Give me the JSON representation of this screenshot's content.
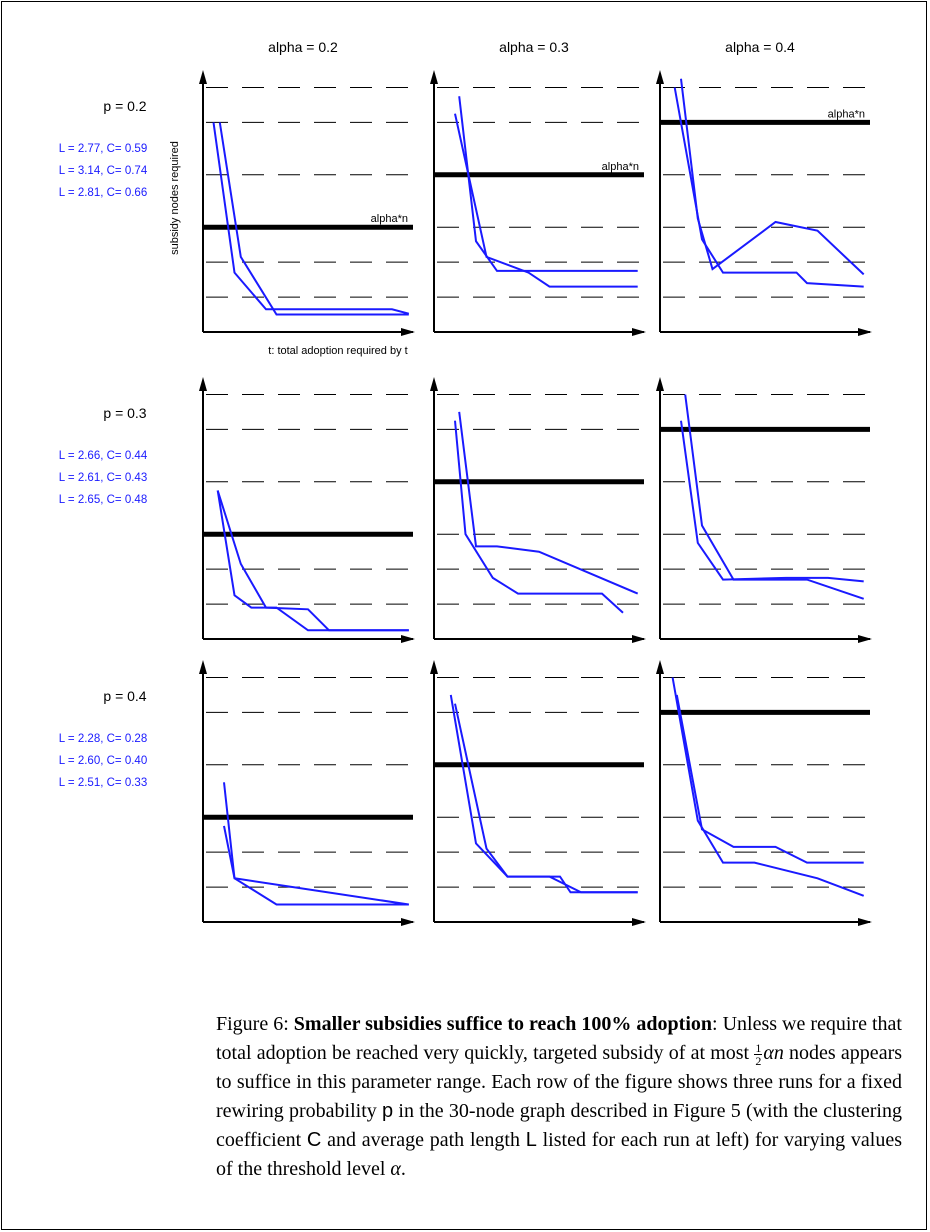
{
  "chart_data": {
    "type": "line",
    "layout": "3x3 small multiples",
    "column_titles": [
      "alpha = 0.2",
      "alpha = 0.3",
      "alpha = 0.4"
    ],
    "row_titles": [
      "p = 0.2",
      "p = 0.3",
      "p = 0.4"
    ],
    "ylabel": "subsidy nodes required",
    "xlabel": "t: total adoption required by t",
    "threshold_label": "alpha*n",
    "run_stats": [
      [
        "L = 2.77, C= 0.59",
        "L = 3.14, C= 0.74",
        "L = 2.81, C= 0.66"
      ],
      [
        "L = 2.66, C= 0.44",
        "L = 2.61, C= 0.43",
        "L = 2.65, C= 0.48"
      ],
      [
        "L = 2.28, C= 0.28",
        "L = 2.60, C= 0.40",
        "L = 2.51, C= 0.33"
      ]
    ],
    "grid": "dashed horizontal",
    "panels": [
      {
        "row": 0,
        "col": 0,
        "threshold": 6,
        "series": [
          {
            "values": [
              [
                0.05,
                12
              ],
              [
                0.15,
                3.4
              ],
              [
                0.3,
                1.3
              ],
              [
                0.45,
                1.3
              ],
              [
                0.9,
                1.3
              ],
              [
                0.98,
                1.05
              ]
            ]
          },
          {
            "values": [
              [
                0.08,
                12
              ],
              [
                0.18,
                4.3
              ],
              [
                0.35,
                1
              ],
              [
                0.98,
                1
              ]
            ]
          }
        ]
      },
      {
        "row": 0,
        "col": 1,
        "threshold": 9,
        "series": [
          {
            "values": [
              [
                0.12,
                13.5
              ],
              [
                0.2,
                5.2
              ],
              [
                0.3,
                3.5
              ],
              [
                0.6,
                3.5
              ],
              [
                0.97,
                3.5
              ]
            ]
          },
          {
            "values": [
              [
                0.1,
                12.5
              ],
              [
                0.25,
                4.3
              ],
              [
                0.45,
                3.4
              ],
              [
                0.55,
                2.6
              ],
              [
                0.97,
                2.6
              ]
            ]
          }
        ]
      },
      {
        "row": 0,
        "col": 2,
        "threshold": 12,
        "series": [
          {
            "values": [
              [
                0.07,
                14
              ],
              [
                0.2,
                5.3
              ],
              [
                0.3,
                3.4
              ],
              [
                0.65,
                3.4
              ],
              [
                0.7,
                2.8
              ],
              [
                0.97,
                2.6
              ]
            ]
          },
          {
            "values": [
              [
                0.1,
                14.5
              ],
              [
                0.18,
                6.5
              ],
              [
                0.25,
                3.6
              ],
              [
                0.55,
                6.3
              ],
              [
                0.75,
                5.8
              ],
              [
                0.97,
                3.3
              ]
            ]
          }
        ]
      },
      {
        "row": 1,
        "col": 0,
        "threshold": 6,
        "series": [
          {
            "values": [
              [
                0.07,
                8.5
              ],
              [
                0.18,
                4.3
              ],
              [
                0.3,
                1.8
              ],
              [
                0.5,
                1.7
              ],
              [
                0.6,
                0.5
              ],
              [
                0.98,
                0.5
              ]
            ]
          },
          {
            "values": [
              [
                0.07,
                8.5
              ],
              [
                0.15,
                2.5
              ],
              [
                0.23,
                1.8
              ],
              [
                0.35,
                1.8
              ],
              [
                0.5,
                0.5
              ],
              [
                0.98,
                0.5
              ]
            ]
          }
        ]
      },
      {
        "row": 1,
        "col": 1,
        "threshold": 9,
        "series": [
          {
            "values": [
              [
                0.1,
                12.5
              ],
              [
                0.15,
                6
              ],
              [
                0.28,
                3.5
              ],
              [
                0.4,
                2.6
              ],
              [
                0.8,
                2.6
              ],
              [
                0.9,
                1.5
              ]
            ]
          },
          {
            "values": [
              [
                0.12,
                13
              ],
              [
                0.2,
                5.3
              ],
              [
                0.3,
                5.3
              ],
              [
                0.5,
                5
              ],
              [
                0.97,
                2.6
              ]
            ]
          }
        ]
      },
      {
        "row": 1,
        "col": 2,
        "threshold": 12,
        "series": [
          {
            "values": [
              [
                0.1,
                12.5
              ],
              [
                0.18,
                5.5
              ],
              [
                0.3,
                3.4
              ],
              [
                0.6,
                3.5
              ],
              [
                0.8,
                3.5
              ],
              [
                0.97,
                3.3
              ]
            ]
          },
          {
            "values": [
              [
                0.12,
                14
              ],
              [
                0.2,
                6.5
              ],
              [
                0.35,
                3.4
              ],
              [
                0.5,
                3.4
              ],
              [
                0.7,
                3.4
              ],
              [
                0.97,
                2.3
              ]
            ]
          }
        ]
      },
      {
        "row": 2,
        "col": 0,
        "threshold": 6,
        "series": [
          {
            "values": [
              [
                0.1,
                5.5
              ],
              [
                0.15,
                2.5
              ],
              [
                0.35,
                1
              ],
              [
                0.98,
                1
              ]
            ]
          },
          {
            "values": [
              [
                0.1,
                8
              ],
              [
                0.15,
                2.5
              ],
              [
                0.98,
                1
              ]
            ]
          }
        ]
      },
      {
        "row": 2,
        "col": 1,
        "threshold": 9,
        "series": [
          {
            "values": [
              [
                0.08,
                13
              ],
              [
                0.2,
                4.5
              ],
              [
                0.35,
                2.6
              ],
              [
                0.6,
                2.6
              ],
              [
                0.65,
                1.7
              ],
              [
                0.97,
                1.7
              ]
            ]
          },
          {
            "values": [
              [
                0.1,
                12.5
              ],
              [
                0.25,
                4.2
              ],
              [
                0.35,
                2.6
              ],
              [
                0.55,
                2.6
              ],
              [
                0.7,
                1.7
              ],
              [
                0.97,
                1.7
              ]
            ]
          }
        ]
      },
      {
        "row": 2,
        "col": 2,
        "threshold": 12,
        "series": [
          {
            "values": [
              [
                0.08,
                13
              ],
              [
                0.2,
                5.3
              ],
              [
                0.35,
                4.3
              ],
              [
                0.55,
                4.3
              ],
              [
                0.7,
                3.4
              ],
              [
                0.97,
                3.4
              ]
            ]
          },
          {
            "values": [
              [
                0.06,
                14
              ],
              [
                0.18,
                5.8
              ],
              [
                0.3,
                3.4
              ],
              [
                0.45,
                3.4
              ],
              [
                0.75,
                2.5
              ],
              [
                0.97,
                1.5
              ]
            ]
          }
        ]
      }
    ]
  },
  "caption": {
    "label": "Figure 6: ",
    "bold_title": "Smaller subsidies suffice to reach 100% adoption",
    "text_1": ": Unless we require that total adoption be reached very quickly, targeted subsidy of at most ",
    "frac_num": "1",
    "frac_den": "2",
    "alpha_n": "αn",
    "text_2": " nodes appears to suffice in this parameter range. Each row of the figure shows three runs for a fixed rewiring probability ",
    "p_symbol": "p",
    "text_3": " in the 30-node graph described in Figure 5 (with the clustering coefficient ",
    "c_symbol": "C",
    "text_4": " and average path length ",
    "l_symbol": "L",
    "text_5": " listed for each run at left) for varying values of the threshold level ",
    "alpha_symbol": "α",
    "text_6": "."
  }
}
